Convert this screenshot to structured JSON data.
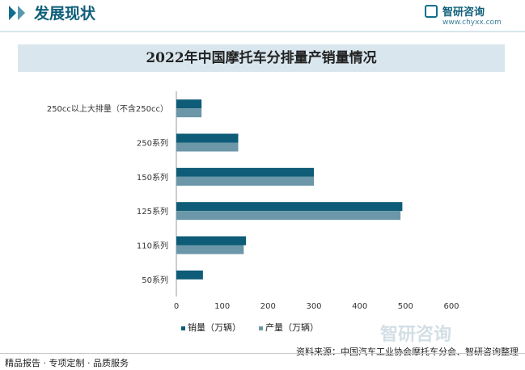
{
  "header": {
    "section_title": "发展现状",
    "brand_name": "智研咨询",
    "brand_url": "www.chyxx.com"
  },
  "chart_data": {
    "type": "bar",
    "orientation": "horizontal",
    "title": "2022年中国摩托车分排量产销量情况",
    "categories": [
      "250cc以上大排量（不含250cc）",
      "250系列",
      "150系列",
      "125系列",
      "110系列",
      "50系列"
    ],
    "series": [
      {
        "name": "销量（万辆）",
        "color": "#0e5c78",
        "values": [
          55,
          135,
          300,
          493,
          152,
          58
        ]
      },
      {
        "name": "产量（万辆）",
        "color": "#6b97a8",
        "values": [
          55,
          135,
          300,
          489,
          147,
          0
        ]
      }
    ],
    "xlim": [
      0,
      600
    ],
    "xticks": [
      0,
      100,
      200,
      300,
      400,
      500,
      600
    ],
    "legend_position": "bottom",
    "grid": false
  },
  "footer": {
    "left": "精品报告 · 专项定制 · 品质服务",
    "source": "资料来源：中国汽车工业协会摩托车分会、智研咨询整理"
  },
  "watermark": {
    "text": "智研咨询"
  }
}
